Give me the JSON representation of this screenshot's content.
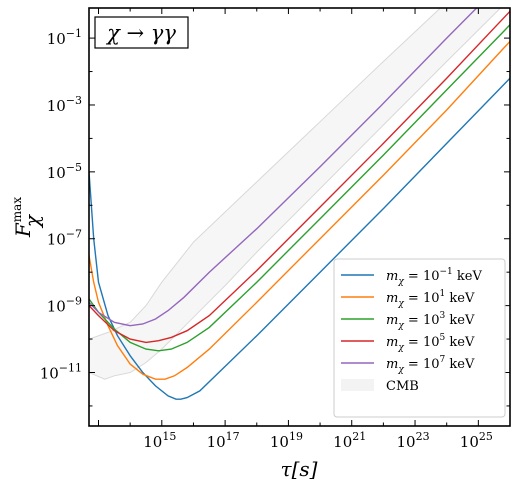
{
  "chart_data": {
    "type": "line",
    "title": "χ → γγ",
    "xlabel": "τ[s]",
    "ylabel_main": "F",
    "ylabel_sup": "max",
    "ylabel_sub": "χ",
    "xscale": "log",
    "yscale": "log",
    "xlim_exp": [
      12.7,
      26
    ],
    "ylim_exp": [
      -12.6,
      -0.1
    ],
    "x_ticks": [
      {
        "base": "10",
        "exp": "15"
      },
      {
        "base": "10",
        "exp": "17"
      },
      {
        "base": "10",
        "exp": "19"
      },
      {
        "base": "10",
        "exp": "21"
      },
      {
        "base": "10",
        "exp": "23"
      },
      {
        "base": "10",
        "exp": "25"
      }
    ],
    "y_ticks": [
      {
        "base": "10",
        "exp": "−1"
      },
      {
        "base": "10",
        "exp": "−3"
      },
      {
        "base": "10",
        "exp": "−5"
      },
      {
        "base": "10",
        "exp": "−7"
      },
      {
        "base": "10",
        "exp": "−9"
      },
      {
        "base": "10",
        "exp": "−11"
      }
    ],
    "legend_position": "lower-right",
    "series": [
      {
        "name_main": "m",
        "name_sub": "χ",
        "name_eq": " = 10",
        "name_exp": "−1",
        "name_unit": " keV",
        "color": "#1f77b4",
        "points": [
          [
            12.7,
            -5.0
          ],
          [
            12.85,
            -7.0
          ],
          [
            13.0,
            -8.3
          ],
          [
            13.3,
            -9.3
          ],
          [
            13.6,
            -9.9
          ],
          [
            14.0,
            -10.5
          ],
          [
            14.4,
            -11.0
          ],
          [
            14.8,
            -11.4
          ],
          [
            15.2,
            -11.7
          ],
          [
            15.45,
            -11.8
          ],
          [
            15.6,
            -11.8
          ],
          [
            15.8,
            -11.75
          ],
          [
            16.2,
            -11.55
          ],
          [
            16.8,
            -11.0
          ],
          [
            18,
            -9.9
          ],
          [
            20,
            -8.0
          ],
          [
            22,
            -6.1
          ],
          [
            24,
            -4.15
          ],
          [
            26,
            -2.2
          ]
        ]
      },
      {
        "name_main": "m",
        "name_sub": "χ",
        "name_eq": " = 10",
        "name_exp": "1",
        "name_unit": " keV",
        "color": "#ff7f0e",
        "points": [
          [
            12.7,
            -7.5
          ],
          [
            12.85,
            -8.3
          ],
          [
            13.0,
            -8.9
          ],
          [
            13.3,
            -9.6
          ],
          [
            13.6,
            -10.2
          ],
          [
            14.0,
            -10.75
          ],
          [
            14.4,
            -11.05
          ],
          [
            14.8,
            -11.2
          ],
          [
            15.1,
            -11.2
          ],
          [
            15.4,
            -11.1
          ],
          [
            15.8,
            -10.85
          ],
          [
            16.5,
            -10.3
          ],
          [
            18,
            -8.9
          ],
          [
            20,
            -7.0
          ],
          [
            22,
            -5.1
          ],
          [
            24,
            -3.15
          ],
          [
            25.8,
            -1.3
          ],
          [
            26,
            -1.1
          ]
        ]
      },
      {
        "name_main": "m",
        "name_sub": "χ",
        "name_eq": " = 10",
        "name_exp": "3",
        "name_unit": " keV",
        "color": "#2ca02c",
        "points": [
          [
            12.7,
            -8.8
          ],
          [
            13.0,
            -9.2
          ],
          [
            13.5,
            -9.7
          ],
          [
            14.0,
            -10.1
          ],
          [
            14.5,
            -10.3
          ],
          [
            14.9,
            -10.35
          ],
          [
            15.3,
            -10.3
          ],
          [
            15.8,
            -10.1
          ],
          [
            16.5,
            -9.65
          ],
          [
            18,
            -8.3
          ],
          [
            20,
            -6.4
          ],
          [
            22,
            -4.5
          ],
          [
            24,
            -2.55
          ],
          [
            25.8,
            -0.8
          ],
          [
            26,
            -0.6
          ]
        ]
      },
      {
        "name_main": "m",
        "name_sub": "χ",
        "name_eq": " = 10",
        "name_exp": "5",
        "name_unit": " keV",
        "color": "#d62728",
        "points": [
          [
            12.7,
            -9.0
          ],
          [
            13.0,
            -9.3
          ],
          [
            13.5,
            -9.75
          ],
          [
            14.0,
            -10.0
          ],
          [
            14.5,
            -10.1
          ],
          [
            14.9,
            -10.05
          ],
          [
            15.3,
            -9.95
          ],
          [
            15.8,
            -9.75
          ],
          [
            16.5,
            -9.3
          ],
          [
            18,
            -7.95
          ],
          [
            20,
            -6.05
          ],
          [
            22,
            -4.15
          ],
          [
            24,
            -2.2
          ],
          [
            25.6,
            -0.6
          ],
          [
            26,
            -0.2
          ]
        ]
      },
      {
        "name_main": "m",
        "name_sub": "χ",
        "name_eq": " = 10",
        "name_exp": "7",
        "name_unit": " keV",
        "color": "#9467bd",
        "points": [
          [
            12.7,
            -8.9
          ],
          [
            13.0,
            -9.2
          ],
          [
            13.5,
            -9.5
          ],
          [
            14.0,
            -9.6
          ],
          [
            14.4,
            -9.55
          ],
          [
            14.8,
            -9.4
          ],
          [
            15.2,
            -9.15
          ],
          [
            15.7,
            -8.75
          ],
          [
            16.5,
            -8.0
          ],
          [
            18,
            -6.7
          ],
          [
            20,
            -4.85
          ],
          [
            22,
            -2.95
          ],
          [
            24,
            -1.0
          ],
          [
            25,
            -0.05
          ]
        ]
      }
    ],
    "cmb_band": {
      "name": "CMB",
      "color": "#d8d8d8",
      "upper": [
        [
          12.7,
          -10.0
        ],
        [
          13.3,
          -9.8
        ],
        [
          14.0,
          -9.5
        ],
        [
          14.5,
          -9.0
        ],
        [
          15.0,
          -8.3
        ],
        [
          16.0,
          -7.1
        ],
        [
          17.0,
          -6.2
        ],
        [
          18.0,
          -5.3
        ],
        [
          20,
          -3.5
        ],
        [
          22,
          -1.7
        ],
        [
          23.8,
          -0.1
        ]
      ],
      "lower": [
        [
          25.7,
          -0.1
        ],
        [
          24,
          -1.7
        ],
        [
          22,
          -3.6
        ],
        [
          20,
          -5.5
        ],
        [
          18,
          -7.4
        ],
        [
          17,
          -8.4
        ],
        [
          16,
          -9.35
        ],
        [
          15.0,
          -10.3
        ],
        [
          14.5,
          -10.7
        ],
        [
          14.0,
          -11.0
        ],
        [
          13.5,
          -11.1
        ],
        [
          13.2,
          -11.2
        ],
        [
          12.7,
          -11.0
        ]
      ]
    }
  }
}
